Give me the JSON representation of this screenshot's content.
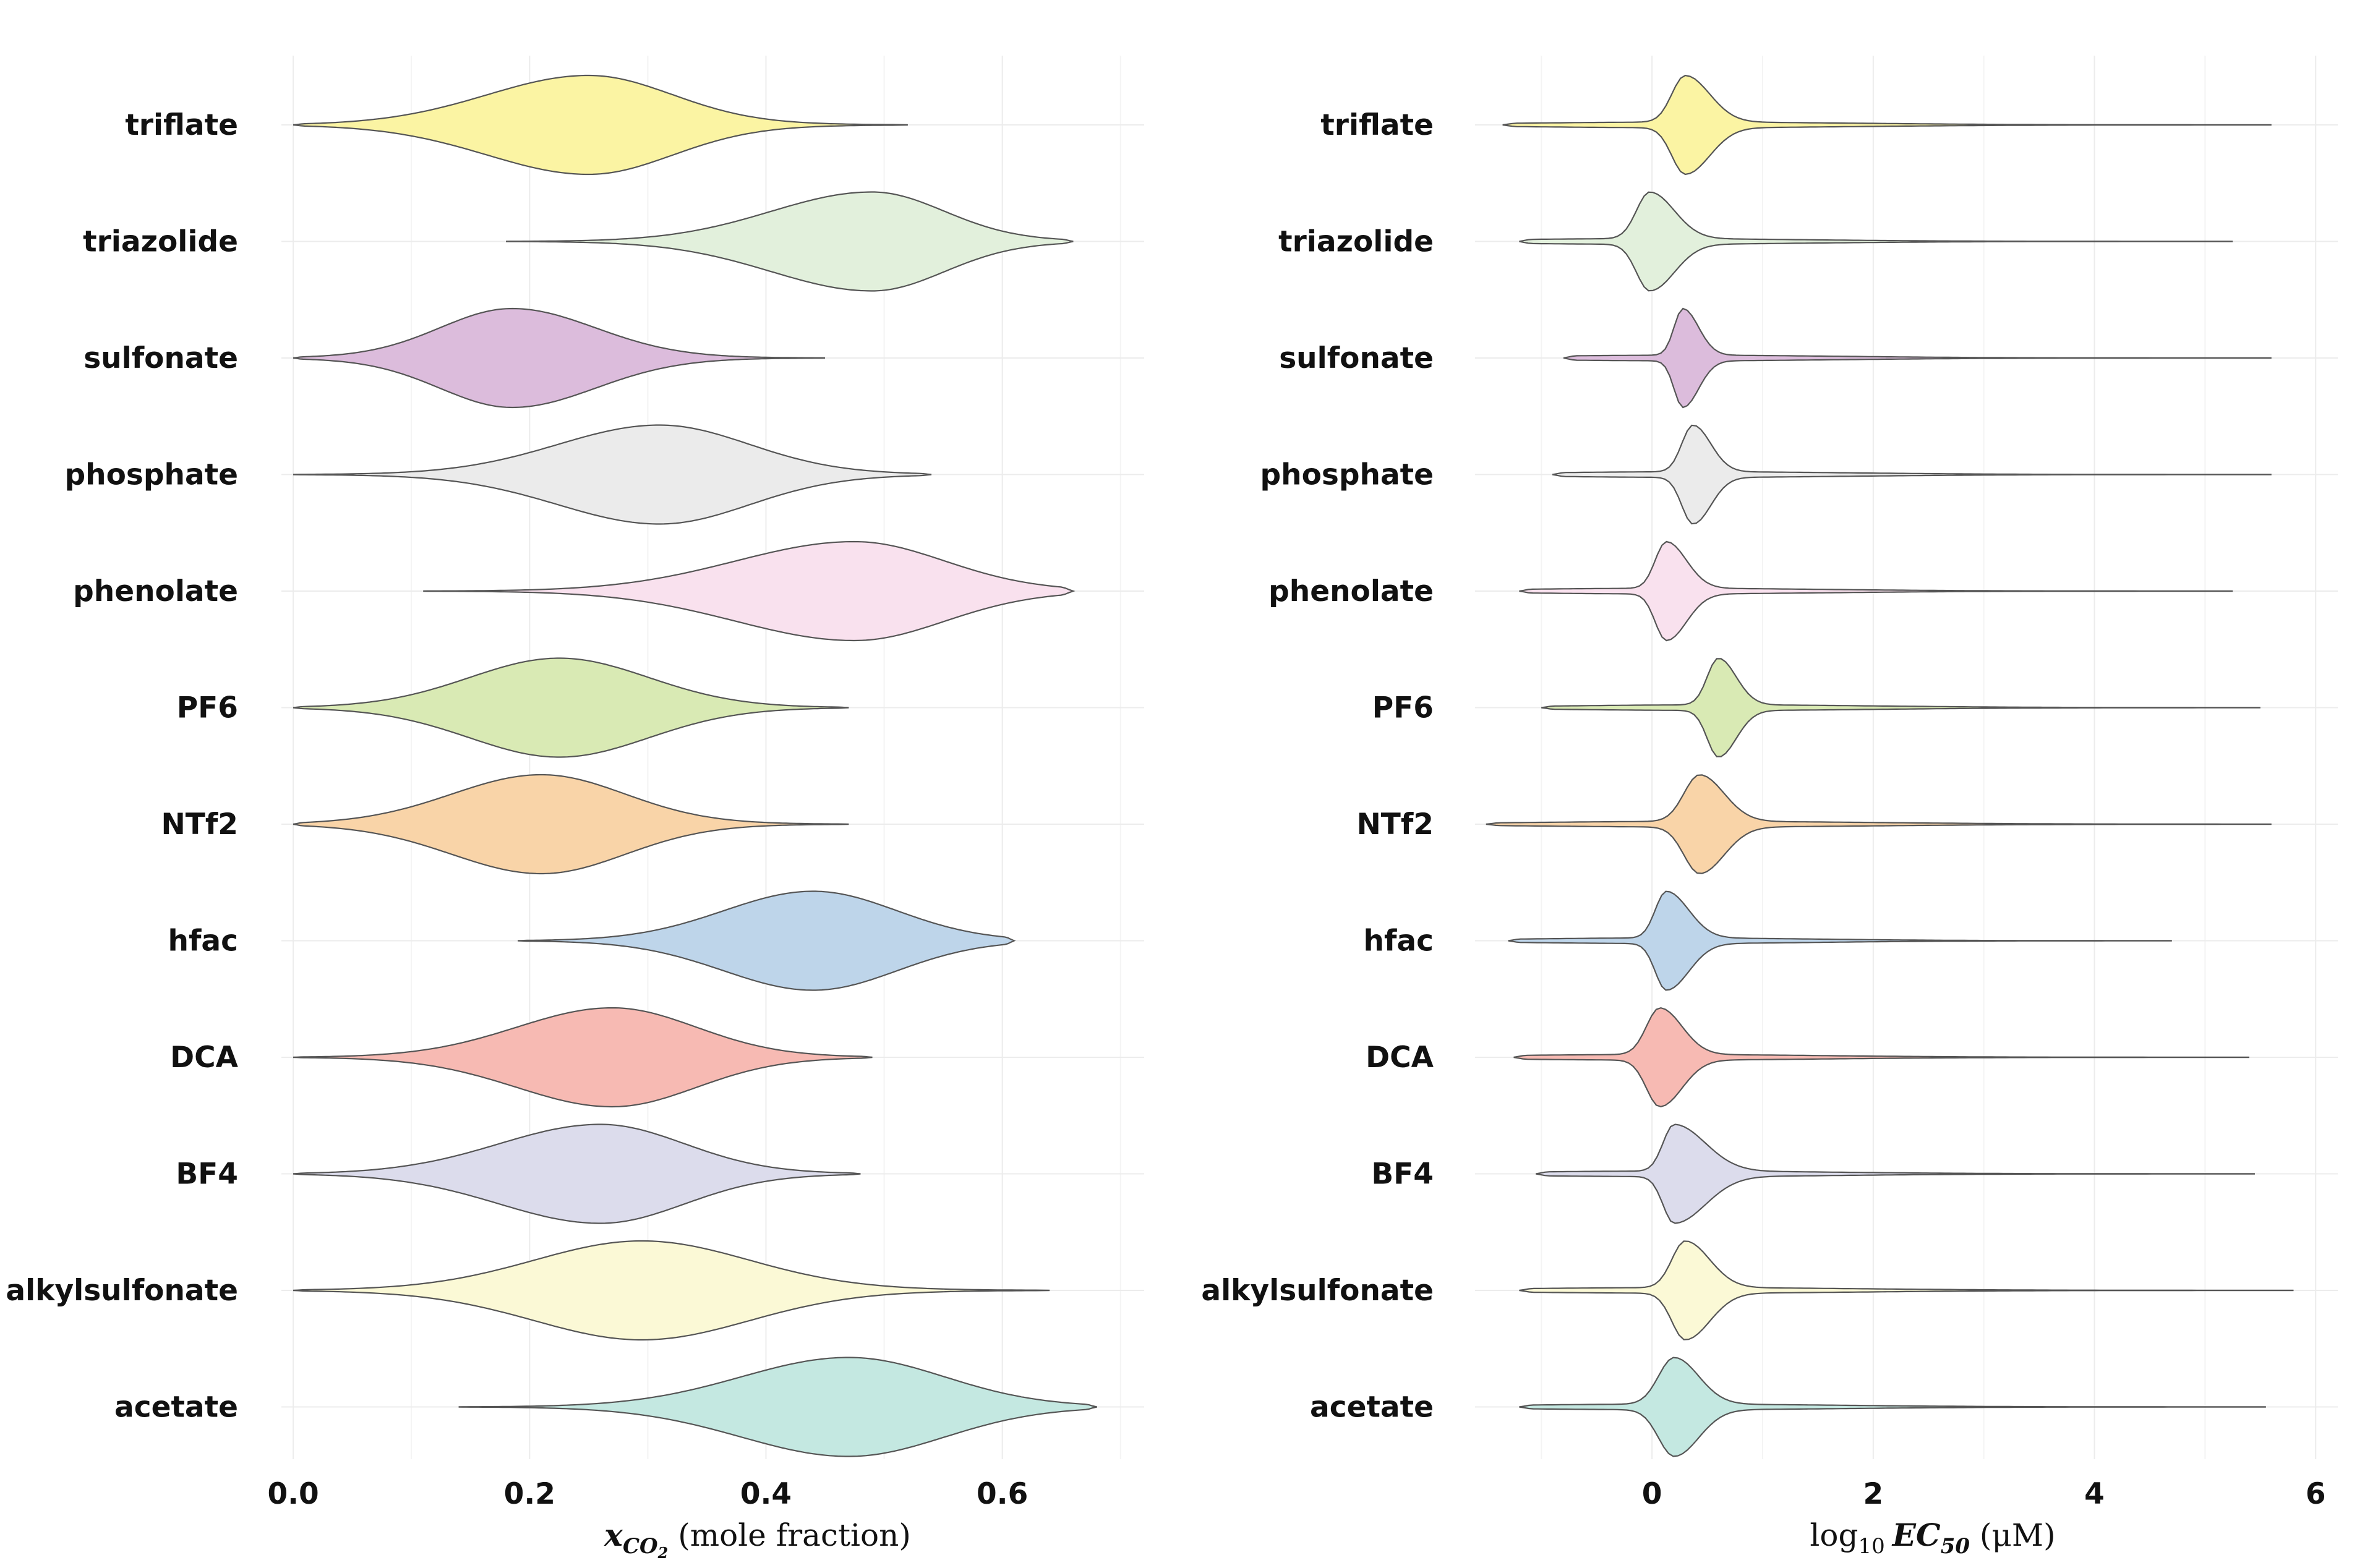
{
  "chart_data": [
    {
      "type": "violin",
      "title": "",
      "xlabel": {
        "var": "x",
        "sub": "CO",
        "sub2": "2",
        "unit": " (mole fraction)"
      },
      "ylabel": "",
      "xlim": [
        -0.01,
        0.72
      ],
      "xticks": [
        0.0,
        0.2,
        0.4,
        0.6
      ],
      "xtick_labels": [
        "0.0",
        "0.2",
        "0.4",
        "0.6"
      ],
      "grid": true,
      "categories": [
        "triflate",
        "triazolide",
        "sulfonate",
        "phosphate",
        "phenolate",
        "PF6",
        "NTf2",
        "hfac",
        "DCA",
        "BF4",
        "alkylsulfonate",
        "acetate"
      ],
      "series": [
        {
          "category": "triflate",
          "color": "#fbf4a3",
          "min": 0.0,
          "max": 0.52,
          "mode": 0.25,
          "q_low": 0.13,
          "q_high": 0.38,
          "spread_left": 0.085,
          "spread_right": 0.07
        },
        {
          "category": "triazolide",
          "color": "#e2f0dc",
          "min": 0.18,
          "max": 0.66,
          "mode": 0.49,
          "q_low": 0.34,
          "q_high": 0.62,
          "spread_left": 0.085,
          "spread_right": 0.06
        },
        {
          "category": "sulfonate",
          "color": "#dcbcdc",
          "min": 0.0,
          "max": 0.45,
          "mode": 0.185,
          "q_low": 0.05,
          "q_high": 0.32,
          "spread_left": 0.06,
          "spread_right": 0.07
        },
        {
          "category": "phosphate",
          "color": "#ebebeb",
          "min": 0.0,
          "max": 0.54,
          "mode": 0.31,
          "q_low": 0.14,
          "q_high": 0.46,
          "spread_left": 0.085,
          "spread_right": 0.075
        },
        {
          "category": "phenolate",
          "color": "#f9e1ee",
          "min": 0.11,
          "max": 0.66,
          "mode": 0.475,
          "q_low": 0.28,
          "q_high": 0.63,
          "spread_left": 0.1,
          "spread_right": 0.075
        },
        {
          "category": "PF6",
          "color": "#d9eab4",
          "min": 0.0,
          "max": 0.47,
          "mode": 0.225,
          "q_low": 0.08,
          "q_high": 0.38,
          "spread_left": 0.075,
          "spread_right": 0.075
        },
        {
          "category": "NTf2",
          "color": "#f9d4a8",
          "min": 0.0,
          "max": 0.47,
          "mode": 0.21,
          "q_low": 0.08,
          "q_high": 0.36,
          "spread_left": 0.075,
          "spread_right": 0.07
        },
        {
          "category": "hfac",
          "color": "#bed5ea",
          "min": 0.19,
          "max": 0.61,
          "mode": 0.44,
          "q_low": 0.28,
          "q_high": 0.56,
          "spread_left": 0.075,
          "spread_right": 0.07
        },
        {
          "category": "DCA",
          "color": "#f7bab3",
          "min": 0.0,
          "max": 0.49,
          "mode": 0.27,
          "q_low": 0.1,
          "q_high": 0.42,
          "spread_left": 0.08,
          "spread_right": 0.07
        },
        {
          "category": "BF4",
          "color": "#dcdcec",
          "min": 0.0,
          "max": 0.48,
          "mode": 0.26,
          "q_low": 0.1,
          "q_high": 0.41,
          "spread_left": 0.085,
          "spread_right": 0.07
        },
        {
          "category": "alkylsulfonate",
          "color": "#fbf9d6",
          "min": 0.0,
          "max": 0.64,
          "mode": 0.295,
          "q_low": 0.08,
          "q_high": 0.52,
          "spread_left": 0.09,
          "spread_right": 0.09
        },
        {
          "category": "acetate",
          "color": "#c4e8e1",
          "min": 0.14,
          "max": 0.68,
          "mode": 0.47,
          "q_low": 0.28,
          "q_high": 0.65,
          "spread_left": 0.09,
          "spread_right": 0.08
        }
      ]
    },
    {
      "type": "violin",
      "title": "",
      "xlabel": {
        "pre": "log",
        "pre_sub": "10",
        "var": "EC",
        "sub": "50",
        "unit": " (μM)"
      },
      "ylabel": "",
      "xlim": [
        -1.6,
        6.2
      ],
      "xticks": [
        0,
        2,
        4,
        6
      ],
      "xtick_labels": [
        "0",
        "2",
        "4",
        "6"
      ],
      "grid": true,
      "categories": [
        "triflate",
        "triazolide",
        "sulfonate",
        "phosphate",
        "phenolate",
        "PF6",
        "NTf2",
        "hfac",
        "DCA",
        "BF4",
        "alkylsulfonate",
        "acetate"
      ],
      "series": [
        {
          "category": "triflate",
          "color": "#fbf4a3",
          "min": -1.35,
          "max": 5.6,
          "mode": 0.3,
          "q_low": -0.4,
          "q_high": 1.9,
          "spread_left": 0.12,
          "spread_right": 0.22
        },
        {
          "category": "triazolide",
          "color": "#e2f0dc",
          "min": -1.2,
          "max": 5.25,
          "mode": -0.02,
          "q_low": -0.8,
          "q_high": 1.6,
          "spread_left": 0.12,
          "spread_right": 0.22
        },
        {
          "category": "sulfonate",
          "color": "#dcbcdc",
          "min": -0.8,
          "max": 5.6,
          "mode": 0.28,
          "q_low": -0.6,
          "q_high": 1.8,
          "spread_left": 0.08,
          "spread_right": 0.14
        },
        {
          "category": "phosphate",
          "color": "#ebebeb",
          "min": -0.9,
          "max": 5.6,
          "mode": 0.37,
          "q_low": -0.4,
          "q_high": 1.6,
          "spread_left": 0.1,
          "spread_right": 0.16
        },
        {
          "category": "phenolate",
          "color": "#f9e1ee",
          "min": -1.2,
          "max": 5.25,
          "mode": 0.13,
          "q_low": -0.8,
          "q_high": 1.8,
          "spread_left": 0.1,
          "spread_right": 0.18
        },
        {
          "category": "PF6",
          "color": "#d9eab4",
          "min": -1.0,
          "max": 5.5,
          "mode": 0.6,
          "q_low": -0.4,
          "q_high": 1.9,
          "spread_left": 0.1,
          "spread_right": 0.16
        },
        {
          "category": "NTf2",
          "color": "#f9d4a8",
          "min": -1.5,
          "max": 5.6,
          "mode": 0.43,
          "q_low": -0.5,
          "q_high": 2.1,
          "spread_left": 0.14,
          "spread_right": 0.22
        },
        {
          "category": "hfac",
          "color": "#bed5ea",
          "min": -1.3,
          "max": 4.7,
          "mode": 0.13,
          "q_low": -0.6,
          "q_high": 1.9,
          "spread_left": 0.1,
          "spread_right": 0.2
        },
        {
          "category": "DCA",
          "color": "#f7bab3",
          "min": -1.25,
          "max": 5.4,
          "mode": 0.07,
          "q_low": -0.7,
          "q_high": 1.9,
          "spread_left": 0.12,
          "spread_right": 0.2
        },
        {
          "category": "BF4",
          "color": "#dcdcec",
          "min": -1.05,
          "max": 5.45,
          "mode": 0.2,
          "q_low": -0.4,
          "q_high": 1.7,
          "spread_left": 0.1,
          "spread_right": 0.28
        },
        {
          "category": "alkylsulfonate",
          "color": "#fbf9d6",
          "min": -1.2,
          "max": 5.8,
          "mode": 0.3,
          "q_low": -0.5,
          "q_high": 1.9,
          "spread_left": 0.12,
          "spread_right": 0.22
        },
        {
          "category": "acetate",
          "color": "#c4e8e1",
          "min": -1.2,
          "max": 5.55,
          "mode": 0.2,
          "q_low": -0.7,
          "q_high": 1.9,
          "spread_left": 0.14,
          "spread_right": 0.22
        }
      ]
    }
  ]
}
